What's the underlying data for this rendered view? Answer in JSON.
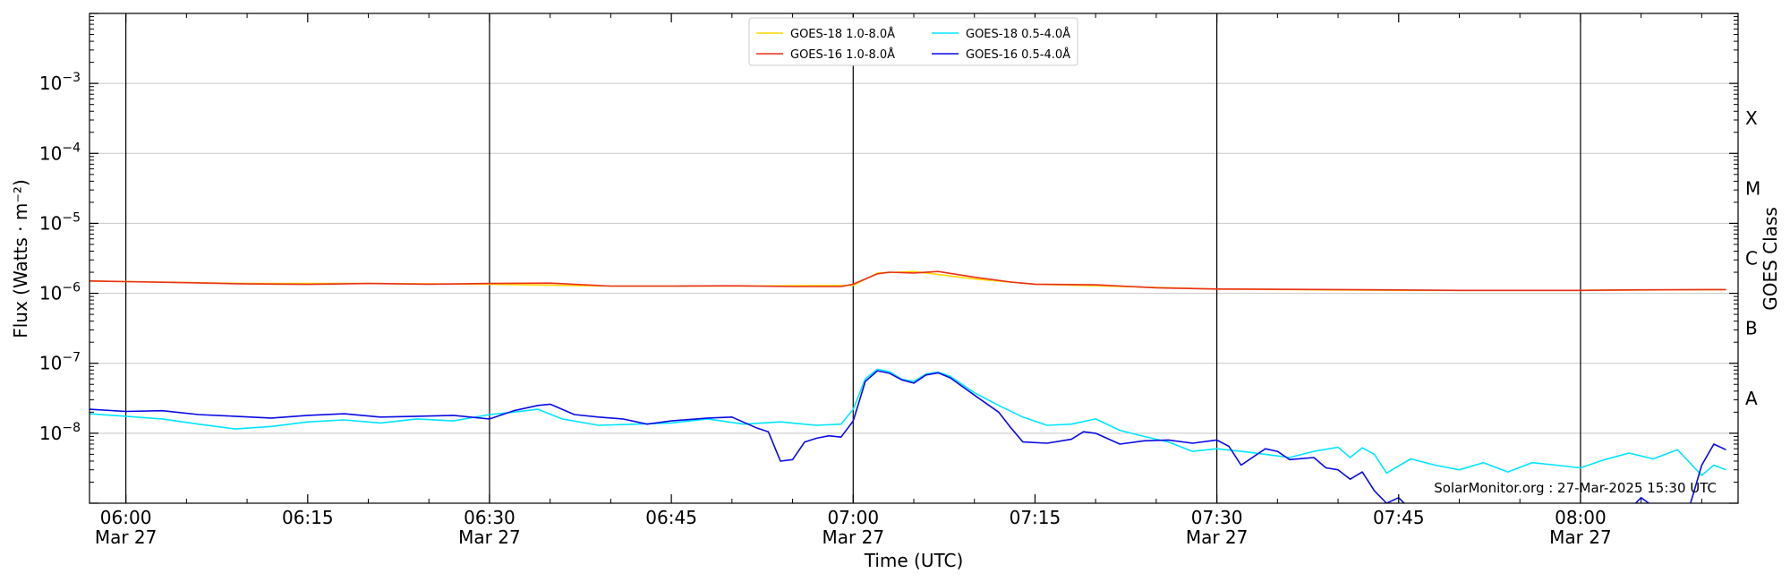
{
  "chart_data": {
    "type": "line",
    "title": "",
    "xlabel": "Time (UTC)",
    "ylabel": "Flux (Watts · m⁻²)",
    "ylabel_right": "GOES Class",
    "y_scale": "log",
    "ylim": [
      1e-09,
      0.01
    ],
    "y_ticks": [
      {
        "value": 1e-08,
        "base": "10",
        "exp": "−8"
      },
      {
        "value": 1e-07,
        "base": "10",
        "exp": "−7"
      },
      {
        "value": 1e-06,
        "base": "10",
        "exp": "−6"
      },
      {
        "value": 1e-05,
        "base": "10",
        "exp": "−5"
      },
      {
        "value": 0.0001,
        "base": "10",
        "exp": "−4"
      },
      {
        "value": 0.001,
        "base": "10",
        "exp": "−3"
      }
    ],
    "goes_classes": [
      {
        "label": "A",
        "value": 1e-08
      },
      {
        "label": "B",
        "value": 1e-07
      },
      {
        "label": "C",
        "value": 1e-06
      },
      {
        "label": "M",
        "value": 1e-05
      },
      {
        "label": "X",
        "value": 0.0001
      }
    ],
    "xlim": [
      "05:57",
      "08:13"
    ],
    "x_ticks": [
      {
        "time": "06:00",
        "label": "06:00",
        "date": "Mar 27",
        "major": true
      },
      {
        "time": "06:15",
        "label": "06:15",
        "date": "",
        "major": false
      },
      {
        "time": "06:30",
        "label": "06:30",
        "date": "Mar 27",
        "major": true
      },
      {
        "time": "06:45",
        "label": "06:45",
        "date": "",
        "major": false
      },
      {
        "time": "07:00",
        "label": "07:00",
        "date": "Mar 27",
        "major": true
      },
      {
        "time": "07:15",
        "label": "07:15",
        "date": "",
        "major": false
      },
      {
        "time": "07:30",
        "label": "07:30",
        "date": "Mar 27",
        "major": true
      },
      {
        "time": "07:45",
        "label": "07:45",
        "date": "",
        "major": false
      },
      {
        "time": "08:00",
        "label": "08:00",
        "date": "Mar 27",
        "major": true
      }
    ],
    "grid": "horizontal",
    "legend_position": "top-center",
    "watermark": "SolarMonitor.org : 27-Mar-2025 15:30 UTC",
    "series": [
      {
        "name": "GOES-18 1.0-8.0Å",
        "color": "#ffd700",
        "points": [
          [
            "05:57",
            1.5e-06
          ],
          [
            "06:10",
            1.38e-06
          ],
          [
            "06:20",
            1.38e-06
          ],
          [
            "06:30",
            1.35e-06
          ],
          [
            "06:40",
            1.27e-06
          ],
          [
            "06:50",
            1.27e-06
          ],
          [
            "07:00",
            1.3e-06
          ],
          [
            "07:02",
            1.95e-06
          ],
          [
            "07:05",
            2.05e-06
          ],
          [
            "07:10",
            1.6e-06
          ],
          [
            "07:15",
            1.35e-06
          ],
          [
            "07:20",
            1.28e-06
          ],
          [
            "07:30",
            1.15e-06
          ],
          [
            "07:45",
            1.1e-06
          ],
          [
            "08:00",
            1.1e-06
          ],
          [
            "08:12",
            1.13e-06
          ]
        ]
      },
      {
        "name": "GOES-16 1.0-8.0Å",
        "color": "#e8301c",
        "points": [
          [
            "05:57",
            1.5e-06
          ],
          [
            "06:00",
            1.47e-06
          ],
          [
            "06:05",
            1.42e-06
          ],
          [
            "06:10",
            1.36e-06
          ],
          [
            "06:15",
            1.34e-06
          ],
          [
            "06:20",
            1.38e-06
          ],
          [
            "06:25",
            1.35e-06
          ],
          [
            "06:30",
            1.38e-06
          ],
          [
            "06:35",
            1.4e-06
          ],
          [
            "06:40",
            1.27e-06
          ],
          [
            "06:45",
            1.27e-06
          ],
          [
            "06:50",
            1.28e-06
          ],
          [
            "06:55",
            1.25e-06
          ],
          [
            "06:59",
            1.25e-06
          ],
          [
            "07:00",
            1.35e-06
          ],
          [
            "07:01",
            1.6e-06
          ],
          [
            "07:02",
            1.9e-06
          ],
          [
            "07:03",
            2e-06
          ],
          [
            "07:05",
            1.95e-06
          ],
          [
            "07:07",
            2.05e-06
          ],
          [
            "07:10",
            1.7e-06
          ],
          [
            "07:13",
            1.45e-06
          ],
          [
            "07:15",
            1.35e-06
          ],
          [
            "07:20",
            1.32e-06
          ],
          [
            "07:25",
            1.2e-06
          ],
          [
            "07:30",
            1.15e-06
          ],
          [
            "07:40",
            1.13e-06
          ],
          [
            "07:50",
            1.1e-06
          ],
          [
            "08:00",
            1.1e-06
          ],
          [
            "08:05",
            1.12e-06
          ],
          [
            "08:12",
            1.13e-06
          ]
        ]
      },
      {
        "name": "GOES-18 0.5-4.0Å",
        "color": "#00e5ff",
        "points": [
          [
            "05:57",
            1.9e-08
          ],
          [
            "06:00",
            1.75e-08
          ],
          [
            "06:03",
            1.6e-08
          ],
          [
            "06:06",
            1.35e-08
          ],
          [
            "06:09",
            1.15e-08
          ],
          [
            "06:12",
            1.25e-08
          ],
          [
            "06:15",
            1.45e-08
          ],
          [
            "06:18",
            1.55e-08
          ],
          [
            "06:21",
            1.4e-08
          ],
          [
            "06:24",
            1.6e-08
          ],
          [
            "06:27",
            1.5e-08
          ],
          [
            "06:30",
            1.85e-08
          ],
          [
            "06:32",
            2e-08
          ],
          [
            "06:34",
            2.2e-08
          ],
          [
            "06:36",
            1.6e-08
          ],
          [
            "06:39",
            1.3e-08
          ],
          [
            "06:42",
            1.35e-08
          ],
          [
            "06:45",
            1.4e-08
          ],
          [
            "06:48",
            1.6e-08
          ],
          [
            "06:51",
            1.35e-08
          ],
          [
            "06:54",
            1.45e-08
          ],
          [
            "06:57",
            1.3e-08
          ],
          [
            "06:59",
            1.35e-08
          ],
          [
            "07:00",
            2.2e-08
          ],
          [
            "07:01",
            6e-08
          ],
          [
            "07:02",
            8.2e-08
          ],
          [
            "07:03",
            7.6e-08
          ],
          [
            "07:04",
            5.9e-08
          ],
          [
            "07:05",
            5.5e-08
          ],
          [
            "07:06",
            7e-08
          ],
          [
            "07:07",
            7.5e-08
          ],
          [
            "07:08",
            6.5e-08
          ],
          [
            "07:10",
            3.8e-08
          ],
          [
            "07:12",
            2.5e-08
          ],
          [
            "07:14",
            1.7e-08
          ],
          [
            "07:16",
            1.3e-08
          ],
          [
            "07:18",
            1.35e-08
          ],
          [
            "07:20",
            1.6e-08
          ],
          [
            "07:22",
            1.1e-08
          ],
          [
            "07:24",
            9e-09
          ],
          [
            "07:26",
            7.5e-09
          ],
          [
            "07:28",
            5.5e-09
          ],
          [
            "07:30",
            6e-09
          ],
          [
            "07:32",
            5.5e-09
          ],
          [
            "07:34",
            5e-09
          ],
          [
            "07:36",
            4.5e-09
          ],
          [
            "07:38",
            5.5e-09
          ],
          [
            "07:40",
            6.3e-09
          ],
          [
            "07:41",
            4.5e-09
          ],
          [
            "07:42",
            6.2e-09
          ],
          [
            "07:43",
            5e-09
          ],
          [
            "07:44",
            2.7e-09
          ],
          [
            "07:46",
            4.3e-09
          ],
          [
            "07:48",
            3.5e-09
          ],
          [
            "07:50",
            3e-09
          ],
          [
            "07:52",
            3.8e-09
          ],
          [
            "07:54",
            2.8e-09
          ],
          [
            "07:56",
            3.8e-09
          ],
          [
            "07:58",
            3.5e-09
          ],
          [
            "08:00",
            3.2e-09
          ],
          [
            "08:02",
            4.2e-09
          ],
          [
            "08:04",
            5.2e-09
          ],
          [
            "08:06",
            4.3e-09
          ],
          [
            "08:08",
            5.8e-09
          ],
          [
            "08:10",
            2.5e-09
          ],
          [
            "08:11",
            3.5e-09
          ],
          [
            "08:12",
            3e-09
          ]
        ]
      },
      {
        "name": "GOES-16 0.5-4.0Å",
        "color": "#0a0ae6",
        "points": [
          [
            "05:57",
            2.2e-08
          ],
          [
            "06:00",
            2.05e-08
          ],
          [
            "06:03",
            2.1e-08
          ],
          [
            "06:06",
            1.85e-08
          ],
          [
            "06:09",
            1.75e-08
          ],
          [
            "06:12",
            1.65e-08
          ],
          [
            "06:15",
            1.8e-08
          ],
          [
            "06:18",
            1.9e-08
          ],
          [
            "06:21",
            1.7e-08
          ],
          [
            "06:24",
            1.75e-08
          ],
          [
            "06:27",
            1.8e-08
          ],
          [
            "06:30",
            1.6e-08
          ],
          [
            "06:32",
            2.1e-08
          ],
          [
            "06:34",
            2.5e-08
          ],
          [
            "06:35",
            2.6e-08
          ],
          [
            "06:37",
            1.85e-08
          ],
          [
            "06:39",
            1.7e-08
          ],
          [
            "06:41",
            1.6e-08
          ],
          [
            "06:43",
            1.35e-08
          ],
          [
            "06:45",
            1.5e-08
          ],
          [
            "06:48",
            1.65e-08
          ],
          [
            "06:50",
            1.7e-08
          ],
          [
            "06:52",
            1.2e-08
          ],
          [
            "06:53",
            1.05e-08
          ],
          [
            "06:54",
            4e-09
          ],
          [
            "06:55",
            4.2e-09
          ],
          [
            "06:56",
            7.5e-09
          ],
          [
            "06:57",
            8.5e-09
          ],
          [
            "06:58",
            9.2e-09
          ],
          [
            "06:59",
            8.8e-09
          ],
          [
            "07:00",
            1.5e-08
          ],
          [
            "07:01",
            5.5e-08
          ],
          [
            "07:02",
            7.8e-08
          ],
          [
            "07:03",
            7.2e-08
          ],
          [
            "07:04",
            5.8e-08
          ],
          [
            "07:05",
            5.2e-08
          ],
          [
            "07:06",
            6.8e-08
          ],
          [
            "07:07",
            7.3e-08
          ],
          [
            "07:08",
            6.2e-08
          ],
          [
            "07:10",
            3.5e-08
          ],
          [
            "07:12",
            2e-08
          ],
          [
            "07:13",
            1.2e-08
          ],
          [
            "07:14",
            7.5e-09
          ],
          [
            "07:16",
            7.2e-09
          ],
          [
            "07:18",
            8.2e-09
          ],
          [
            "07:19",
            1.05e-08
          ],
          [
            "07:20",
            1e-08
          ],
          [
            "07:22",
            7e-09
          ],
          [
            "07:24",
            7.8e-09
          ],
          [
            "07:26",
            8e-09
          ],
          [
            "07:28",
            7.2e-09
          ],
          [
            "07:30",
            8e-09
          ],
          [
            "07:31",
            6.5e-09
          ],
          [
            "07:32",
            3.5e-09
          ],
          [
            "07:34",
            6e-09
          ],
          [
            "07:35",
            5.5e-09
          ],
          [
            "07:36",
            4.2e-09
          ],
          [
            "07:38",
            4.5e-09
          ],
          [
            "07:39",
            3.2e-09
          ],
          [
            "07:40",
            3e-09
          ],
          [
            "07:41",
            2.2e-09
          ],
          [
            "07:42",
            2.8e-09
          ],
          [
            "07:43",
            1.5e-09
          ],
          [
            "07:44",
            1e-09
          ],
          [
            "07:45",
            1.2e-09
          ],
          [
            "07:46",
            8e-10
          ],
          [
            "08:04",
            8e-10
          ],
          [
            "08:05",
            1.2e-09
          ],
          [
            "08:06",
            9e-10
          ],
          [
            "08:09",
            9e-10
          ],
          [
            "08:10",
            3.5e-09
          ],
          [
            "08:11",
            7e-09
          ],
          [
            "08:12",
            5.8e-09
          ]
        ]
      }
    ]
  }
}
